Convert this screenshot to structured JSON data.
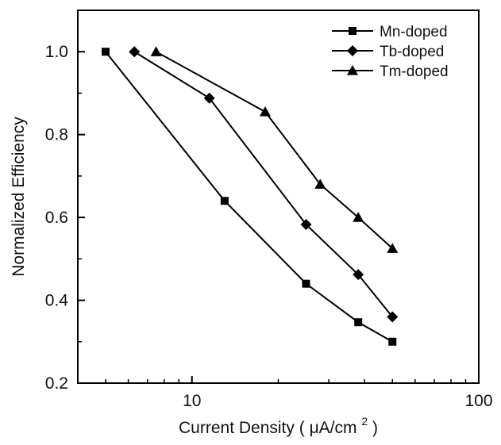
{
  "chart_data": {
    "type": "line",
    "title": "",
    "xlabel": "Current Density (μA/cm²)",
    "xlabel_parts": {
      "main": "Current Density (",
      "unit_prefix": "μA/cm",
      "superscript": "2",
      "close": ")"
    },
    "ylabel": "Normalized Efficiency",
    "x_scale": "log",
    "xlim": [
      4,
      100
    ],
    "ylim": [
      0.2,
      1.1
    ],
    "x_ticks": [
      {
        "value": 10,
        "label": "10"
      },
      {
        "value": 100,
        "label": "100"
      }
    ],
    "y_ticks": [
      {
        "value": 0.2,
        "label": "0.2"
      },
      {
        "value": 0.4,
        "label": "0.4"
      },
      {
        "value": 0.6,
        "label": "0.6"
      },
      {
        "value": 0.8,
        "label": "0.8"
      },
      {
        "value": 1.0,
        "label": "1.0"
      }
    ],
    "grid": false,
    "legend_position": "top-right",
    "series": [
      {
        "name": "Mn-doped",
        "marker": "square",
        "color": "#000000",
        "x": [
          5,
          13,
          25,
          38,
          50
        ],
        "y": [
          1.0,
          0.64,
          0.44,
          0.347,
          0.3
        ]
      },
      {
        "name": "Tb-doped",
        "marker": "diamond",
        "color": "#000000",
        "x": [
          6.3,
          11.5,
          25,
          38,
          50
        ],
        "y": [
          1.0,
          0.888,
          0.583,
          0.462,
          0.36
        ]
      },
      {
        "name": "Tm-doped",
        "marker": "triangle",
        "color": "#000000",
        "x": [
          7.5,
          18,
          28,
          38,
          50
        ],
        "y": [
          1.0,
          0.855,
          0.68,
          0.6,
          0.525
        ]
      }
    ]
  }
}
